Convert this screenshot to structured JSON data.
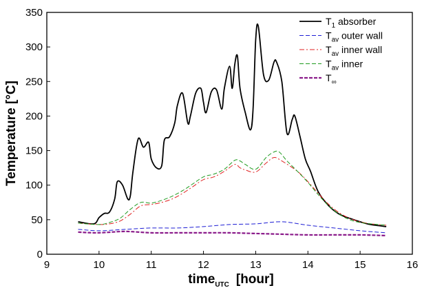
{
  "chart_data": {
    "type": "line",
    "title": "",
    "xlabel": {
      "main": "time",
      "sub": "UTC",
      "unit": "[hour]"
    },
    "ylabel": "Temperature [°C]",
    "xlim": [
      9,
      16
    ],
    "ylim": [
      0,
      350
    ],
    "xticks": [
      9,
      10,
      11,
      12,
      13,
      14,
      15,
      16
    ],
    "yticks": [
      0,
      50,
      100,
      150,
      200,
      250,
      300,
      350
    ],
    "grid": false,
    "legend_position": "top-right",
    "series": [
      {
        "name": "T1 absorber",
        "legend": {
          "main": "T",
          "sub": "1",
          "rest": " absorber"
        },
        "color": "#000000",
        "style": "solid",
        "x": [
          9.6,
          9.9,
          10.0,
          10.1,
          10.2,
          10.3,
          10.35,
          10.45,
          10.55,
          10.6,
          10.65,
          10.75,
          10.85,
          10.95,
          11.0,
          11.1,
          11.2,
          11.25,
          11.35,
          11.45,
          11.5,
          11.6,
          11.7,
          11.75,
          11.85,
          11.95,
          12.0,
          12.05,
          12.15,
          12.25,
          12.35,
          12.4,
          12.5,
          12.55,
          12.6,
          12.65,
          12.7,
          12.8,
          12.9,
          12.95,
          13.0,
          13.05,
          13.15,
          13.25,
          13.35,
          13.4,
          13.5,
          13.6,
          13.7,
          13.75,
          13.85,
          13.95,
          14.05,
          14.2,
          14.4,
          14.6,
          14.8,
          15.0,
          15.2,
          15.5
        ],
        "y": [
          47,
          44,
          53,
          59,
          61,
          80,
          105,
          100,
          80,
          85,
          120,
          167,
          155,
          162,
          138,
          125,
          128,
          165,
          170,
          190,
          215,
          233,
          190,
          200,
          233,
          240,
          220,
          205,
          235,
          238,
          210,
          240,
          272,
          240,
          275,
          287,
          240,
          205,
          180,
          210,
          310,
          330,
          260,
          252,
          278,
          278,
          250,
          175,
          195,
          200,
          170,
          138,
          120,
          90,
          70,
          58,
          52,
          47,
          43,
          40
        ]
      },
      {
        "name": "Tav outer wall",
        "legend": {
          "main": "T",
          "sub": "av",
          "rest": " outer wall"
        },
        "color": "#1c1cd4",
        "style": "dashed",
        "x": [
          9.6,
          10.0,
          10.5,
          11.0,
          11.5,
          12.0,
          12.5,
          13.0,
          13.5,
          14.0,
          14.5,
          15.0,
          15.5
        ],
        "y": [
          36,
          34,
          36,
          38,
          38,
          40,
          43,
          44,
          47,
          42,
          38,
          34,
          31
        ]
      },
      {
        "name": "Tav inner wall",
        "legend": {
          "main": "T",
          "sub": "av",
          "rest": " inner wall"
        },
        "color": "#e02020",
        "style": "dashdot",
        "x": [
          9.6,
          10.0,
          10.2,
          10.4,
          10.6,
          10.8,
          11.0,
          11.2,
          11.4,
          11.6,
          11.8,
          12.0,
          12.2,
          12.4,
          12.6,
          12.7,
          12.8,
          13.0,
          13.2,
          13.35,
          13.5,
          13.8,
          14.0,
          14.2,
          14.4,
          14.6,
          14.8,
          15.0,
          15.2,
          15.5
        ],
        "y": [
          45,
          43,
          44,
          48,
          58,
          70,
          72,
          75,
          80,
          88,
          98,
          108,
          112,
          120,
          130,
          125,
          122,
          119,
          132,
          140,
          135,
          120,
          105,
          88,
          72,
          60,
          52,
          47,
          44,
          42
        ]
      },
      {
        "name": "Tav inner",
        "legend": {
          "main": "T",
          "sub": "av",
          "rest": " inner"
        },
        "color": "#1e9a1e",
        "style": "dashed",
        "x": [
          9.6,
          10.0,
          10.2,
          10.4,
          10.6,
          10.8,
          11.0,
          11.2,
          11.4,
          11.6,
          11.8,
          12.0,
          12.2,
          12.4,
          12.6,
          12.7,
          12.8,
          13.0,
          13.2,
          13.35,
          13.45,
          13.6,
          13.8,
          14.0,
          14.2,
          14.4,
          14.6,
          14.8,
          15.0,
          15.2,
          15.5
        ],
        "y": [
          45,
          43,
          46,
          52,
          65,
          75,
          74,
          78,
          84,
          92,
          102,
          112,
          116,
          123,
          136,
          135,
          130,
          123,
          140,
          148,
          148,
          135,
          120,
          104,
          86,
          70,
          58,
          50,
          46,
          44,
          42
        ]
      },
      {
        "name": "T∞",
        "legend": {
          "main": "T",
          "sub": "∞",
          "rest": ""
        },
        "color": "#8a1a8a",
        "style": "dashed-thick",
        "x": [
          9.6,
          10.0,
          10.5,
          11.0,
          11.5,
          12.0,
          12.5,
          13.0,
          13.5,
          14.0,
          14.5,
          15.0,
          15.5
        ],
        "y": [
          32,
          31,
          33,
          31,
          31,
          31,
          31,
          30,
          29,
          28,
          28,
          28,
          27
        ]
      }
    ]
  }
}
